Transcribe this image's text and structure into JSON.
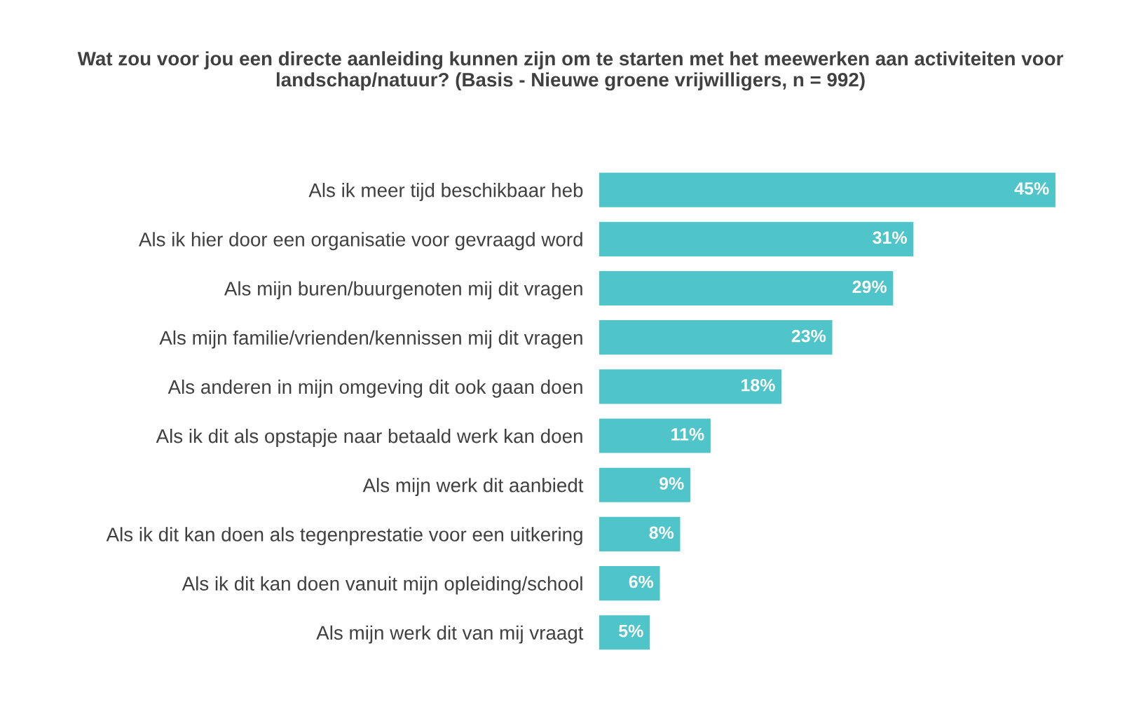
{
  "chart_data": {
    "type": "bar",
    "orientation": "horizontal",
    "title": "Wat zou voor jou een directe aanleiding kunnen zijn om te starten met het meewerken aan activiteiten voor landschap/natuur? (Basis - Nieuwe groene vrijwilligers, n = 992)",
    "categories": [
      "Als ik meer tijd beschikbaar heb",
      "Als ik hier door een organisatie voor gevraagd word",
      "Als mijn buren/buurgenoten mij dit vragen",
      "Als mijn familie/vrienden/kennissen mij dit vragen",
      "Als anderen in mijn omgeving dit ook gaan doen",
      "Als ik dit als opstapje naar betaald werk kan doen",
      "Als mijn werk dit aanbiedt",
      "Als ik dit kan doen als tegenprestatie voor een uitkering",
      "Als ik dit kan doen vanuit mijn opleiding/school",
      "Als mijn werk dit van mij vraagt"
    ],
    "values": [
      45,
      31,
      29,
      23,
      18,
      11,
      9,
      8,
      6,
      5
    ],
    "value_labels": [
      "45%",
      "31%",
      "29%",
      "23%",
      "18%",
      "11%",
      "9%",
      "8%",
      "6%",
      "5%"
    ],
    "color": "#4fc4c9",
    "tick_labels": "y",
    "grid": false,
    "legend": false
  }
}
